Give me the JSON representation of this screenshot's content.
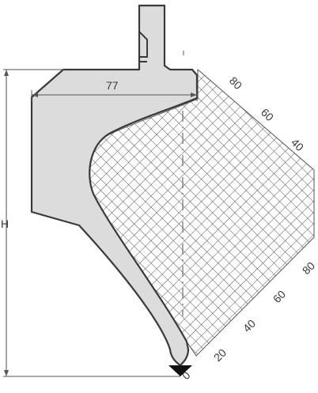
{
  "labels": {
    "width_dimension": "77",
    "height_dimension": "H",
    "tip_zero": "0"
  },
  "clearance_scale": {
    "right_edge_ticks": [
      "80",
      "60",
      "40"
    ],
    "lower_edge_ticks": [
      "80",
      "60",
      "40",
      "20"
    ]
  },
  "colors": {
    "tool_fill": "#dcdcdc",
    "outline": "#3a3a3a",
    "hatch": "#555555",
    "dimension_line": "#555555"
  }
}
